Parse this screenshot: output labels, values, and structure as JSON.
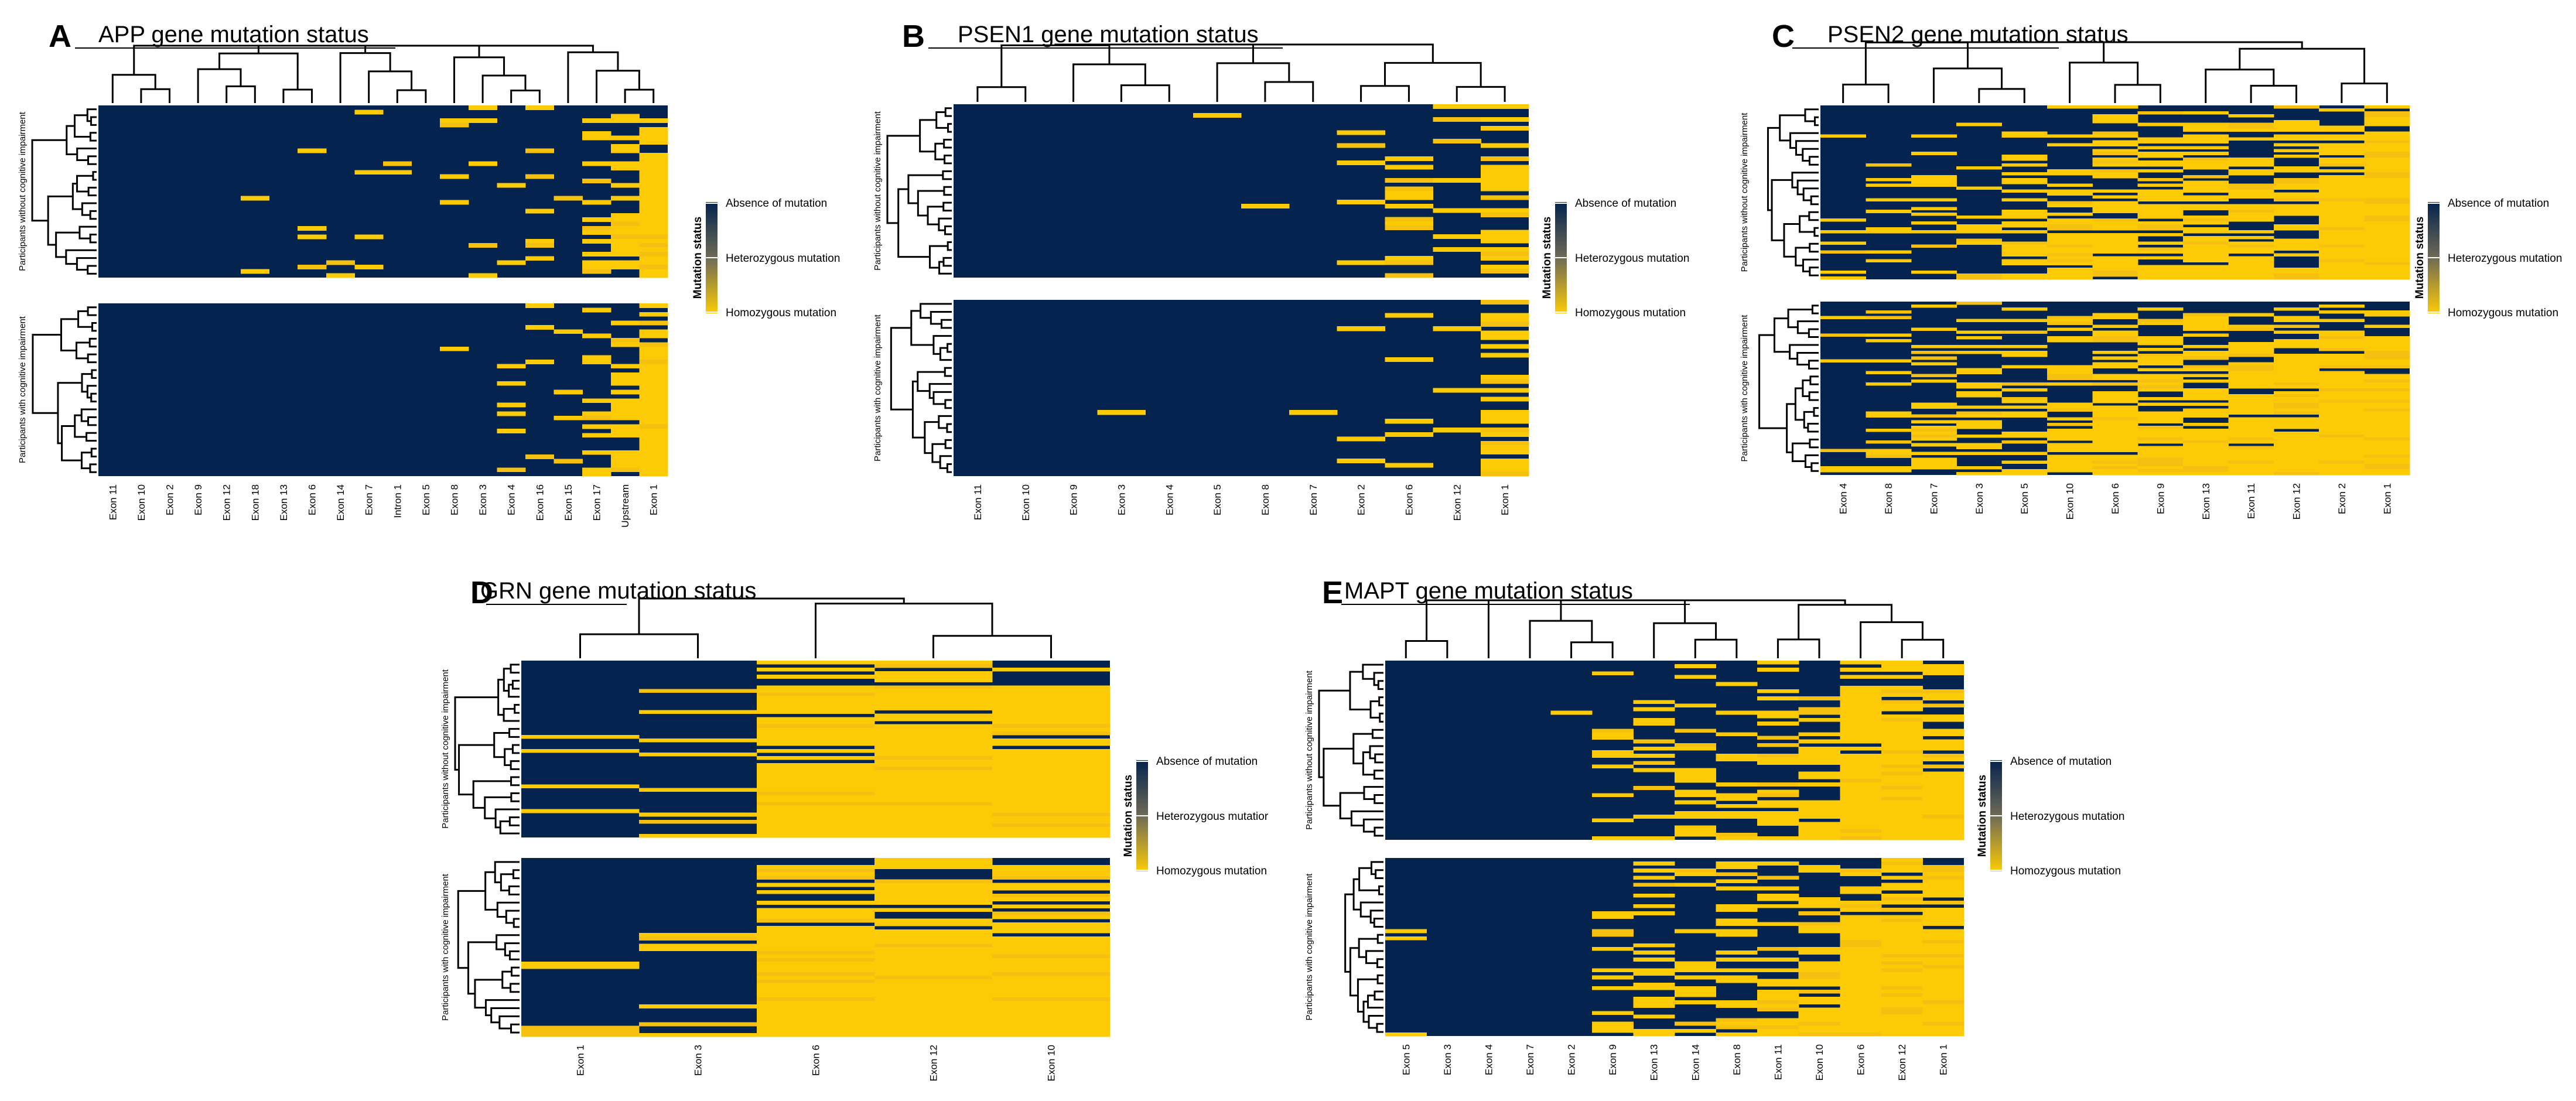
{
  "colors": {
    "absent": "#04234E",
    "het": "#6E6A55",
    "homo": "#FCCB06",
    "homo_alt": "#F5C010"
  },
  "legend": {
    "title": "Mutation status",
    "absent": "Absence of mutation",
    "het": "Heterozygous mutation",
    "homo": "Homozygous mutation",
    "het_truncated_D": "Heterozygous mutatior"
  },
  "row_groups": {
    "without": "Participants without cognitive impairment",
    "with": "Participants with cognitive impairment"
  },
  "chart_data": [
    {
      "label": "A",
      "title": "APP gene mutation status",
      "type": "heatmap",
      "columns": [
        "Exon 11",
        "Exon 10",
        "Exon 2",
        "Exon 9",
        "Exon 12",
        "Exon 18",
        "Exon 13",
        "Exon 6",
        "Exon 14",
        "Exon 7",
        "Intron 1",
        "Exon 5",
        "Exon 8",
        "Exon 3",
        "Exon 4",
        "Exon 16",
        "Exon 15",
        "Exon 17",
        "Upstream",
        "Exon 1"
      ],
      "homozygous_fraction_without": [
        0.01,
        0.0,
        0.0,
        0.02,
        0.0,
        0.03,
        0.03,
        0.05,
        0.06,
        0.06,
        0.06,
        0.08,
        0.08,
        0.1,
        0.12,
        0.15,
        0.12,
        0.35,
        0.45,
        0.95
      ],
      "homozygous_fraction_with": [
        0.0,
        0.0,
        0.0,
        0.0,
        0.0,
        0.0,
        0.0,
        0.03,
        0.02,
        0.0,
        0.0,
        0.0,
        0.03,
        0.0,
        0.18,
        0.06,
        0.1,
        0.3,
        0.55,
        0.97
      ],
      "scale": [
        "Absence of mutation",
        "Heterozygous mutation",
        "Homozygous mutation"
      ]
    },
    {
      "label": "B",
      "title": "PSEN1 gene mutation status",
      "type": "heatmap",
      "columns": [
        "Exon 11",
        "Exon 10",
        "Exon 9",
        "Exon 3",
        "Exon 4",
        "Exon 5",
        "Exon 8",
        "Exon 7",
        "Exon 2",
        "Exon 6",
        "Exon 12",
        "Exon 1"
      ],
      "homozygous_fraction_without": [
        0.0,
        0.0,
        0.0,
        0.0,
        0.0,
        0.01,
        0.02,
        0.05,
        0.12,
        0.15,
        0.15,
        0.6
      ],
      "homozygous_fraction_with": [
        0.0,
        0.01,
        0.01,
        0.02,
        0.0,
        0.0,
        0.0,
        0.02,
        0.06,
        0.08,
        0.12,
        0.62
      ],
      "scale": [
        "Absence of mutation",
        "Heterozygous mutation",
        "Homozygous mutation"
      ]
    },
    {
      "label": "C",
      "title": "PSEN2 gene mutation status",
      "type": "heatmap",
      "columns": [
        "Exon 4",
        "Exon 8",
        "Exon 7",
        "Exon 3",
        "Exon 5",
        "Exon 10",
        "Exon 6",
        "Exon 9",
        "Exon 13",
        "Exon 11",
        "Exon 12",
        "Exon 2",
        "Exon 1"
      ],
      "homozygous_fraction_without": [
        0.1,
        0.18,
        0.22,
        0.25,
        0.3,
        0.55,
        0.62,
        0.6,
        0.65,
        0.55,
        0.62,
        0.92,
        1.0
      ],
      "homozygous_fraction_with": [
        0.12,
        0.25,
        0.3,
        0.35,
        0.4,
        0.55,
        0.72,
        0.68,
        0.72,
        0.62,
        0.68,
        0.95,
        1.0
      ],
      "scale": [
        "Absence of mutation",
        "Heterozygous mutation",
        "Homozygous mutation"
      ]
    },
    {
      "label": "D",
      "title": "GRN gene mutation status",
      "type": "heatmap",
      "columns": [
        "Exon 1",
        "Exon 3",
        "Exon 6",
        "Exon 12",
        "Exon 10"
      ],
      "homozygous_fraction_without": [
        0.1,
        0.15,
        0.85,
        0.88,
        0.92
      ],
      "homozygous_fraction_with": [
        0.12,
        0.1,
        0.9,
        0.93,
        0.95
      ],
      "scale": [
        "Absence of mutation",
        "Heterozygous mutatior",
        "Homozygous mutation"
      ]
    },
    {
      "label": "E",
      "title": "MAPT gene mutation status",
      "type": "heatmap",
      "columns": [
        "Exon 5",
        "Exon 3",
        "Exon 4",
        "Exon 7",
        "Exon 2",
        "Exon 9",
        "Exon 13",
        "Exon 14",
        "Exon 8",
        "Exon 11",
        "Exon 10",
        "Exon 6",
        "Exon 12",
        "Exon 1"
      ],
      "homozygous_fraction_without": [
        0.0,
        0.0,
        0.0,
        0.02,
        0.05,
        0.15,
        0.25,
        0.3,
        0.25,
        0.45,
        0.55,
        0.9,
        0.92,
        0.85
      ],
      "homozygous_fraction_with": [
        0.02,
        0.0,
        0.0,
        0.0,
        0.06,
        0.2,
        0.3,
        0.35,
        0.35,
        0.45,
        0.6,
        0.95,
        0.95,
        0.9
      ],
      "scale": [
        "Absence of mutation",
        "Heterozygous mutation",
        "Homozygous mutation"
      ]
    }
  ]
}
